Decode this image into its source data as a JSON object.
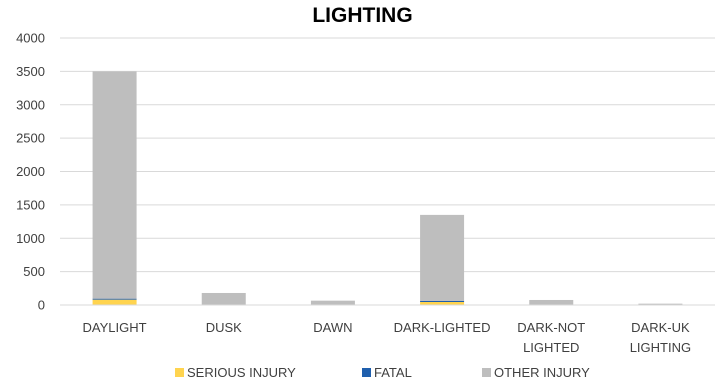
{
  "chart_data": {
    "type": "bar",
    "stacked": true,
    "title": "LIGHTING",
    "xlabel": "",
    "ylabel": "",
    "ylim": [
      0,
      4000
    ],
    "yticks": [
      0,
      500,
      1000,
      1500,
      2000,
      2500,
      3000,
      3500,
      4000
    ],
    "grid": true,
    "legend_position": "bottom",
    "categories": [
      [
        "DAYLIGHT"
      ],
      [
        "DUSK"
      ],
      [
        "DAWN"
      ],
      [
        "DARK-LIGHTED"
      ],
      [
        "DARK-NOT",
        "LIGHTED"
      ],
      [
        "DARK-UK",
        "LIGHTING"
      ]
    ],
    "series": [
      {
        "name": "SERIOUS INJURY",
        "color": "#FFD44F",
        "values": [
          80,
          3,
          2,
          45,
          2,
          0
        ]
      },
      {
        "name": "FATAL",
        "color": "#1F5FAD",
        "values": [
          15,
          1,
          1,
          15,
          1,
          0
        ]
      },
      {
        "name": "OTHER INJURY",
        "color": "#BEBEBE",
        "values": [
          3405,
          176,
          62,
          1290,
          72,
          20
        ]
      }
    ]
  }
}
